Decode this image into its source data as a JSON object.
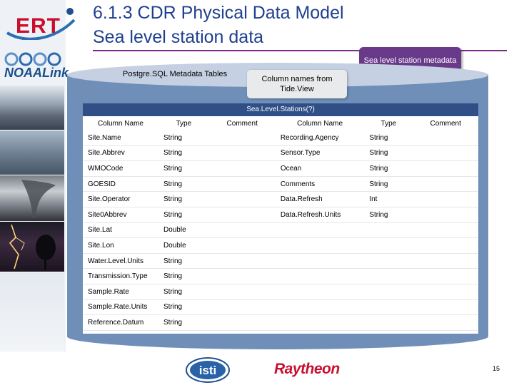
{
  "header": {
    "title_line_1": "6.1.3 CDR Physical Data Model",
    "title_line_2": "Sea level station data"
  },
  "logos": {
    "ert": "ERT",
    "noaa_link": "NOAALink",
    "isti": "isti",
    "raytheon": "Raytheon"
  },
  "callouts": {
    "sea_level_metadata": "Sea level station metadata",
    "column_names": "Column names from Tide.View"
  },
  "database": {
    "label": "Postgre.SQL Metadata Tables"
  },
  "table": {
    "title": "Sea.Level.Stations(?)",
    "headers": [
      "Column Name",
      "Type",
      "Comment",
      "Column Name",
      "Type",
      "Comment"
    ],
    "rows": [
      [
        "Site.Name",
        "String",
        "",
        "Recording.Agency",
        "String",
        ""
      ],
      [
        "Site.Abbrev",
        "String",
        "",
        "Sensor.Type",
        "String",
        ""
      ],
      [
        "WMOCode",
        "String",
        "",
        "Ocean",
        "String",
        ""
      ],
      [
        "GOESID",
        "String",
        "",
        "Comments",
        "String",
        ""
      ],
      [
        "Site.Operator",
        "String",
        "",
        "Data.Refresh",
        "Int",
        ""
      ],
      [
        "Site0Abbrev",
        "String",
        "",
        "Data.Refresh.Units",
        "String",
        ""
      ],
      [
        "Site.Lat",
        "Double",
        "",
        "",
        "",
        ""
      ],
      [
        "Site.Lon",
        "Double",
        "",
        "",
        "",
        ""
      ],
      [
        "Water.Level.Units",
        "String",
        "",
        "",
        "",
        ""
      ],
      [
        "Transmission.Type",
        "String",
        "",
        "",
        "",
        ""
      ],
      [
        "Sample.Rate",
        "String",
        "",
        "",
        "",
        ""
      ],
      [
        "Sample.Rate.Units",
        "String",
        "",
        "",
        "",
        ""
      ],
      [
        "Reference.Datum",
        "String",
        "",
        "",
        "",
        ""
      ]
    ]
  },
  "footer": {
    "page_number": "15"
  },
  "colors": {
    "title": "#1f3f8f",
    "accent_rule": "#7b2d8a",
    "callout_purple": "#6a3a8a",
    "table_header": "#2f4f86",
    "database_blue": "#6f8fb8",
    "brand_red": "#c8102e"
  }
}
